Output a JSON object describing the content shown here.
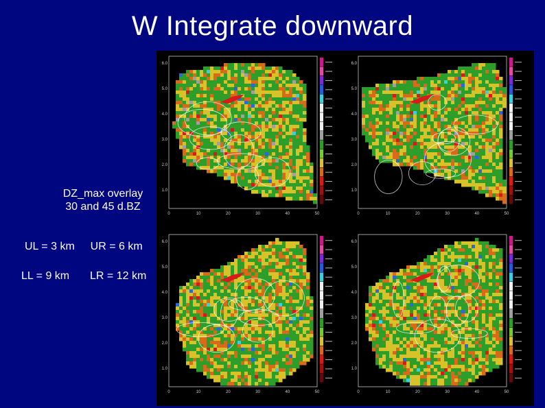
{
  "slide": {
    "title": "W Integrate downward",
    "overlay_note_line1": "DZ_max overlay",
    "overlay_note_line2": "30 and 45 d.BZ",
    "levels": {
      "ul": "UL = 3 km",
      "ur": "UR = 6 km",
      "ll": "LL = 9 km",
      "lr": "LR = 12 km"
    }
  },
  "colors": {
    "background": "#000580",
    "field_green": "#2e9e2a",
    "field_yellow": "#d8c22a",
    "field_orange": "#d96a1a",
    "field_red": "#d81a1a",
    "field_blue": "#2a6ad8",
    "field_cyan": "#3ad0e0",
    "field_gray": "#a0a0a0",
    "contour_white": "#ffffff"
  },
  "panels": [
    {
      "id": "ul",
      "x_ticks": [
        "0",
        "10",
        "20",
        "30",
        "40",
        "50"
      ],
      "y_ticks": [
        "6.0",
        "5.0",
        "4.0",
        "3.0",
        "2.0",
        "1.0"
      ]
    },
    {
      "id": "ur",
      "x_ticks": [
        "0",
        "10",
        "20",
        "30",
        "40",
        "50"
      ],
      "y_ticks": [
        "6.0",
        "5.0",
        "4.0",
        "3.0",
        "2.0",
        "1.0"
      ]
    },
    {
      "id": "ll",
      "x_ticks": [
        "0",
        "10",
        "20",
        "30",
        "40",
        "50"
      ],
      "y_ticks": [
        "6.0",
        "5.0",
        "4.0",
        "3.0",
        "2.0",
        "1.0"
      ]
    },
    {
      "id": "lr",
      "x_ticks": [
        "0",
        "10",
        "20",
        "30",
        "40",
        "50"
      ],
      "y_ticks": [
        "6.0",
        "5.0",
        "4.0",
        "3.0",
        "2.0",
        "1.0"
      ]
    }
  ]
}
